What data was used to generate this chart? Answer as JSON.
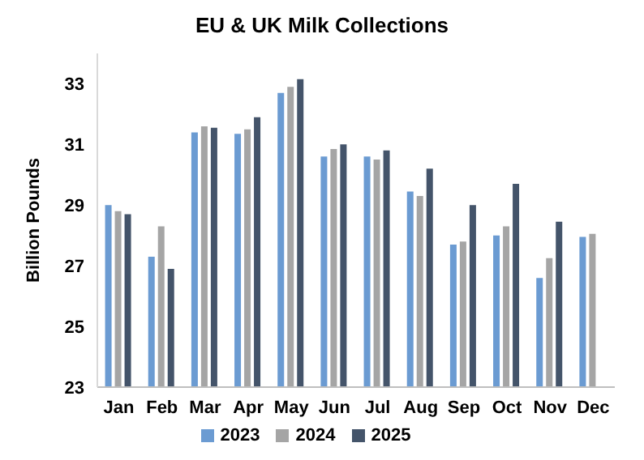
{
  "chart_data": {
    "type": "bar",
    "title": "EU & UK Milk Collections",
    "ylabel": "Billion Pounds",
    "categories": [
      "Jan",
      "Feb",
      "Mar",
      "Apr",
      "May",
      "Jun",
      "Jul",
      "Aug",
      "Sep",
      "Oct",
      "Nov",
      "Dec"
    ],
    "series": [
      {
        "name": "2023",
        "color": "#6b9bd2",
        "values": [
          29.0,
          27.3,
          31.4,
          31.35,
          32.7,
          30.6,
          30.6,
          29.45,
          27.7,
          28.0,
          26.6,
          27.95
        ]
      },
      {
        "name": "2024",
        "color": "#a5a5a5",
        "values": [
          28.8,
          28.3,
          31.6,
          31.5,
          32.9,
          30.85,
          30.5,
          29.3,
          27.8,
          28.3,
          27.25,
          28.05
        ]
      },
      {
        "name": "2025",
        "color": "#44546a",
        "values": [
          28.7,
          26.9,
          31.55,
          31.9,
          33.15,
          31.0,
          30.8,
          30.2,
          29.0,
          29.7,
          28.45,
          null
        ]
      }
    ],
    "ylim": [
      23,
      34
    ],
    "yticks": [
      23,
      25,
      27,
      29,
      31,
      33
    ],
    "grid": false,
    "legend": "bottom"
  }
}
